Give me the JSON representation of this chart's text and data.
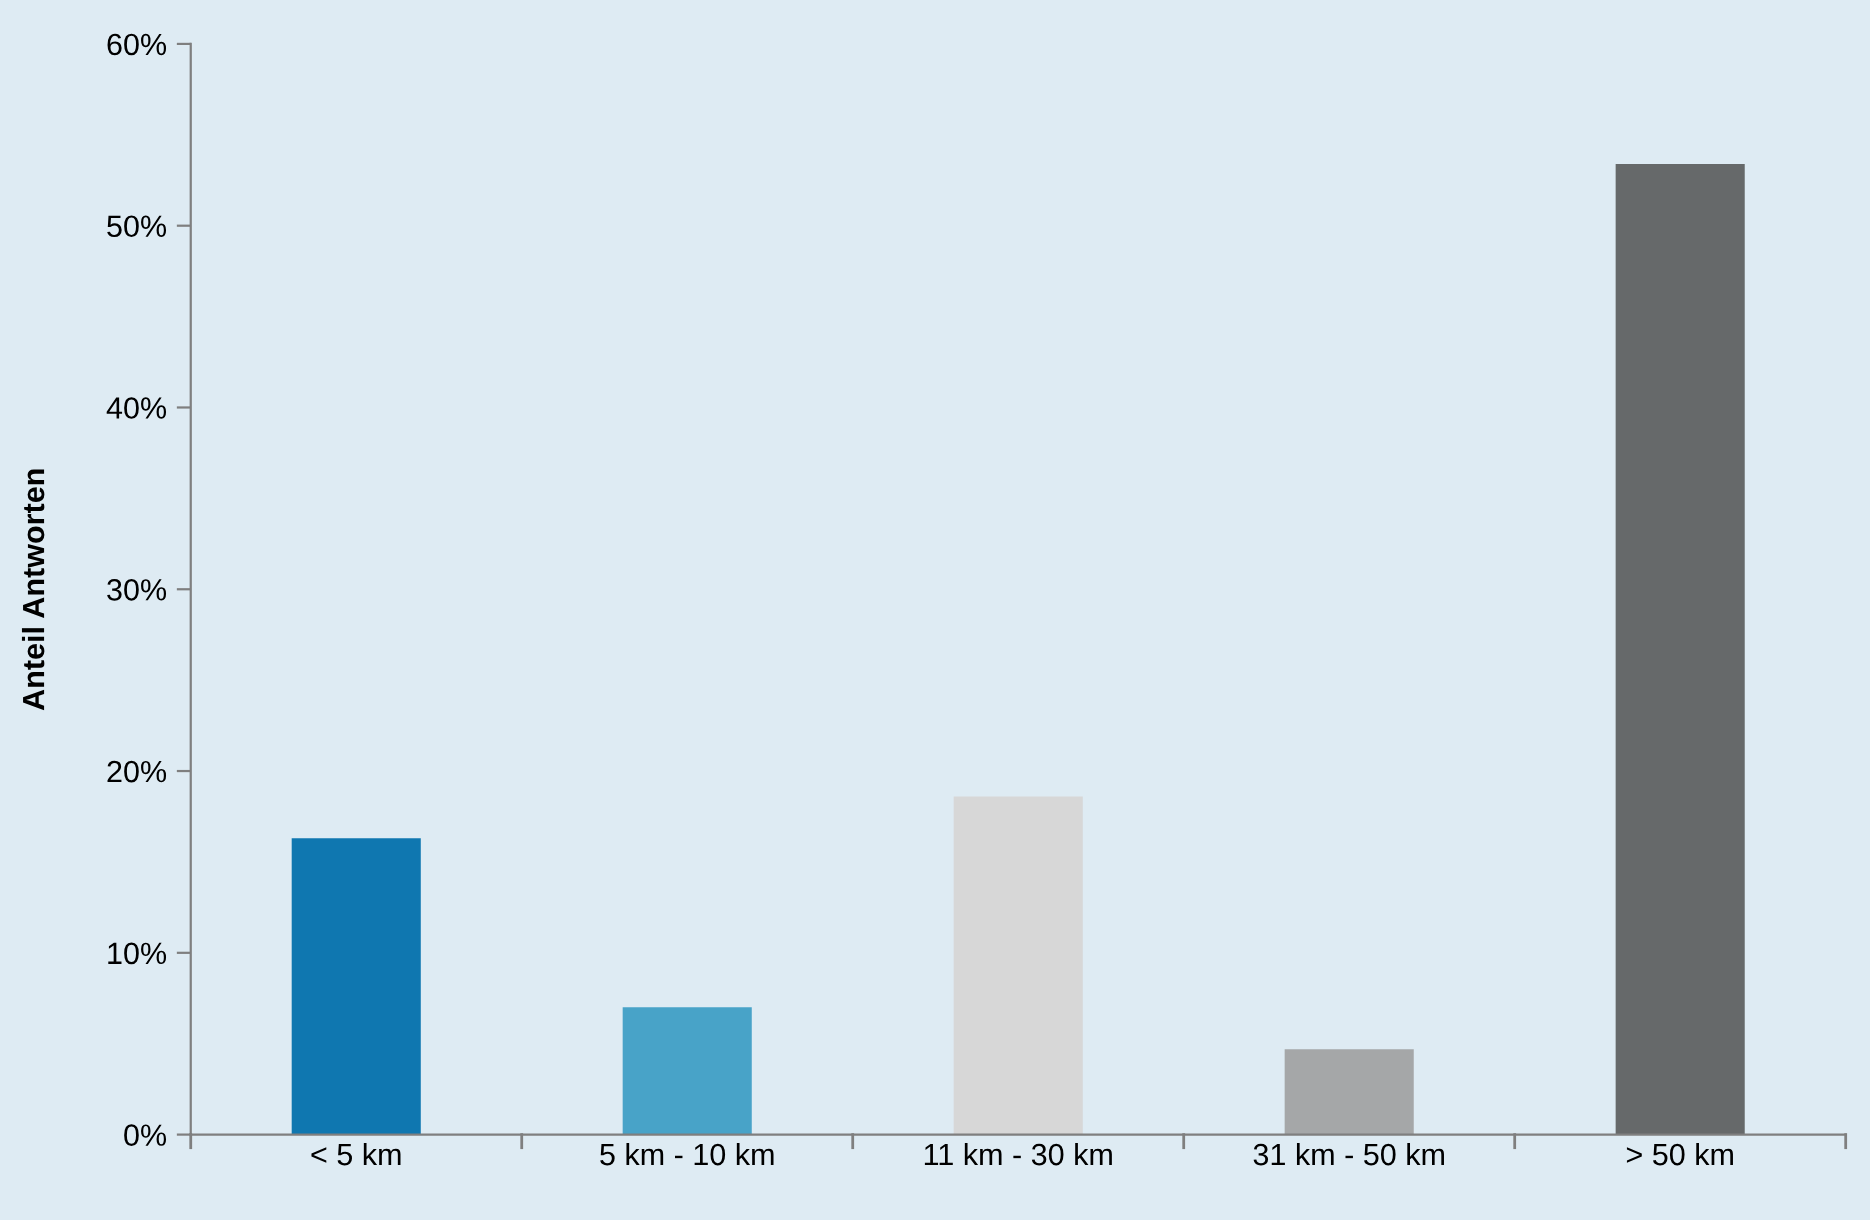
{
  "chart_data": {
    "type": "bar",
    "ylabel": "Anteil Antworten",
    "categories": [
      "< 5 km",
      "5 km - 10 km",
      "11 km - 30 km",
      "31 km - 50 km",
      "> 50 km"
    ],
    "values": [
      16.3,
      7.0,
      18.6,
      4.7,
      53.4
    ],
    "colors": [
      "#0f77b0",
      "#48a3c8",
      "#d7d7d7",
      "#a5a7a8",
      "#66696a"
    ],
    "ylim": [
      0,
      60
    ],
    "yticks": [
      {
        "value": 0,
        "label": "0%"
      },
      {
        "value": 10,
        "label": "10%"
      },
      {
        "value": 20,
        "label": "20%"
      },
      {
        "value": 30,
        "label": "30%"
      },
      {
        "value": 40,
        "label": "40%"
      },
      {
        "value": 50,
        "label": "50%"
      },
      {
        "value": 60,
        "label": "60%"
      }
    ],
    "grid": false
  }
}
